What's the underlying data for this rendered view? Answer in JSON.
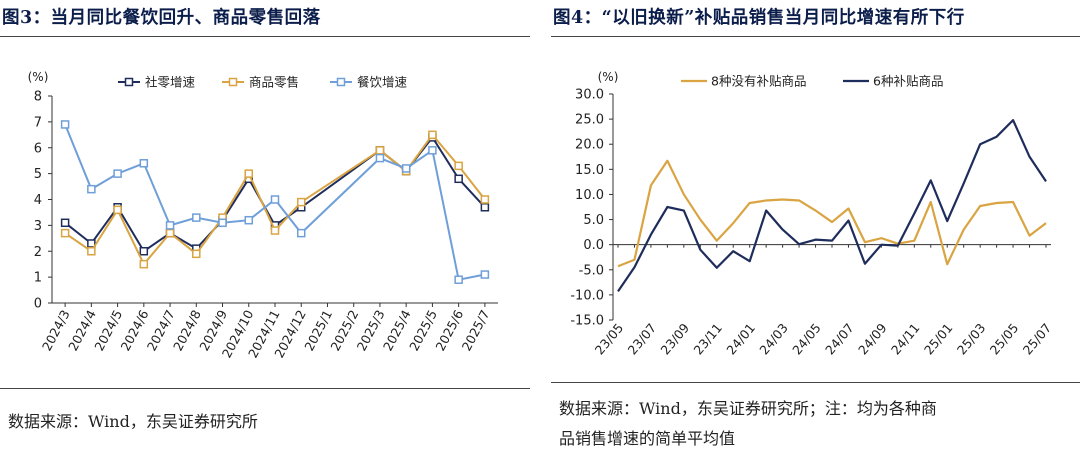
{
  "left": {
    "title": "图3：当月同比餐饮回升、商品零售回落",
    "source": "数据来源：Wind，东吴证券研究所",
    "chart_data": {
      "type": "line",
      "title": "图3：当月同比餐饮回升、商品零售回落",
      "unit": "(%)",
      "ylim": [
        0,
        8
      ],
      "yticks": [
        "0",
        "1",
        "2",
        "3",
        "4",
        "5",
        "6",
        "7",
        "8"
      ],
      "x": [
        "2024/3",
        "2024/4",
        "2024/5",
        "2024/6",
        "2024/7",
        "2024/8",
        "2024/9",
        "2024/10",
        "2024/11",
        "2024/12",
        "2025/1",
        "2025/2",
        "2025/3",
        "2025/4",
        "2025/5",
        "2025/6",
        "2025/7"
      ],
      "grid": false,
      "legend": "top",
      "series": [
        {
          "name": "社零增速",
          "color": "#1f2d5c",
          "values": [
            3.1,
            2.3,
            3.7,
            2.0,
            2.7,
            2.1,
            3.2,
            4.8,
            3.0,
            3.7,
            null,
            null,
            5.9,
            5.1,
            6.4,
            4.8,
            3.7
          ]
        },
        {
          "name": "商品零售",
          "color": "#d9a441",
          "values": [
            2.7,
            2.0,
            3.6,
            1.5,
            2.7,
            1.9,
            3.3,
            5.0,
            2.8,
            3.9,
            null,
            null,
            5.9,
            5.1,
            6.5,
            5.3,
            4.0
          ]
        },
        {
          "name": "餐饮增速",
          "color": "#6f9fd8",
          "values": [
            6.9,
            4.4,
            5.0,
            5.4,
            3.0,
            3.3,
            3.1,
            3.2,
            4.0,
            2.7,
            null,
            null,
            5.6,
            5.2,
            5.9,
            0.9,
            1.1
          ]
        }
      ]
    }
  },
  "right": {
    "title": "图4：“以旧换新”补贴品销售当月同比增速有所下行",
    "source_line1": "数据来源：Wind，东吴证券研究所；注：均为各种商",
    "source_line2": "品销售增速的简单平均值",
    "chart_data": {
      "type": "line",
      "title": "图4：“以旧换新”补贴品销售当月同比增速有所下行",
      "unit": "(%)",
      "ylim": [
        -15,
        30
      ],
      "yticks": [
        "-15.0",
        "-10.0",
        "-5.0",
        "0.0",
        "5.0",
        "10.0",
        "15.0",
        "20.0",
        "25.0",
        "30.0"
      ],
      "x": [
        "23/05",
        "23/06",
        "23/07",
        "23/08",
        "23/09",
        "23/10",
        "23/11",
        "23/12",
        "24/01",
        "24/02",
        "24/03",
        "24/04",
        "24/05",
        "24/06",
        "24/07",
        "24/08",
        "24/09",
        "24/10",
        "24/11",
        "24/12",
        "25/01",
        "25/02",
        "25/03",
        "25/04",
        "25/05",
        "25/06",
        "25/07"
      ],
      "xtick_labels": [
        "23/05",
        "23/07",
        "23/09",
        "23/11",
        "24/01",
        "24/03",
        "24/05",
        "24/07",
        "24/09",
        "24/11",
        "25/01",
        "25/03",
        "25/05",
        "25/07"
      ],
      "grid": false,
      "legend": "top",
      "series": [
        {
          "name": "8种没有补贴商品",
          "color": "#d9a441",
          "values": [
            -4.3,
            -3.0,
            11.8,
            16.7,
            10.0,
            5.0,
            0.8,
            4.3,
            8.3,
            8.8,
            9.0,
            8.8,
            6.8,
            4.5,
            7.2,
            0.5,
            1.3,
            0.2,
            0.8,
            8.5,
            -3.9,
            3.0,
            7.7,
            8.3,
            8.5,
            1.8,
            4.3
          ]
        },
        {
          "name": "6种补贴商品",
          "color": "#1f2d5c",
          "values": [
            -9.3,
            -4.5,
            2.0,
            7.5,
            6.8,
            -1.0,
            -4.6,
            -1.3,
            -3.3,
            6.8,
            3.0,
            0.1,
            1.0,
            0.8,
            4.8,
            -3.8,
            0.0,
            -0.2,
            6.2,
            12.8,
            4.7,
            12.2,
            20.0,
            21.5,
            24.8,
            17.5,
            12.6
          ]
        }
      ]
    }
  }
}
